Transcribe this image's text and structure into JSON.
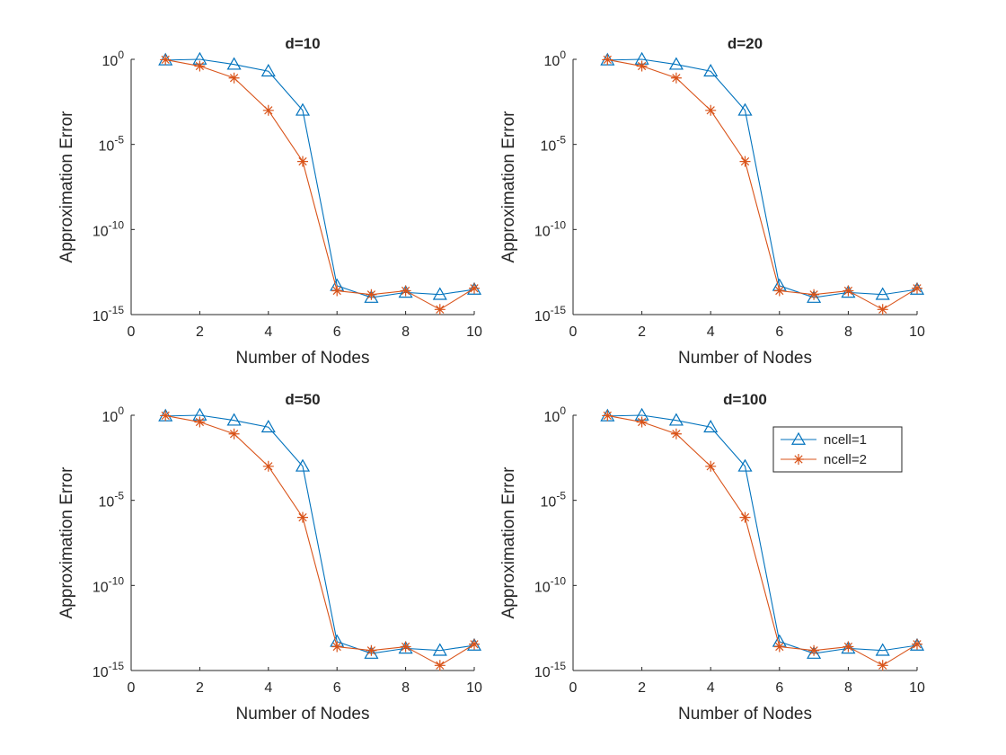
{
  "figure": {
    "xlabel": "Number of Nodes",
    "ylabel": "Approximation Error",
    "colors": {
      "ncell1": "#0072BD",
      "ncell2": "#D95319",
      "axis": "#262626"
    }
  },
  "chart_data": [
    {
      "type": "line",
      "title": "d=10",
      "xlabel": "Number of Nodes",
      "ylabel": "Approximation Error",
      "x": [
        1,
        2,
        3,
        4,
        5,
        6,
        7,
        8,
        9,
        10
      ],
      "xlim": [
        0,
        10
      ],
      "xticks": [
        "0",
        "2",
        "4",
        "6",
        "8",
        "10"
      ],
      "yscale": "log",
      "ylim": [
        1e-15,
        1
      ],
      "yticks": [
        {
          "base": "10",
          "exp": "0"
        },
        {
          "base": "10",
          "exp": "-5"
        },
        {
          "base": "10",
          "exp": "-10"
        },
        {
          "base": "10",
          "exp": "-15"
        }
      ],
      "series": [
        {
          "name": "ncell=1",
          "marker": "triangle",
          "values": [
            0.9,
            1.0,
            0.5,
            0.2,
            0.001,
            5e-14,
            1e-14,
            2e-14,
            1.5e-14,
            3e-14
          ]
        },
        {
          "name": "ncell=2",
          "marker": "asterisk",
          "values": [
            0.95,
            0.4,
            0.08,
            0.001,
            1e-06,
            2.5e-14,
            1.5e-14,
            2.5e-14,
            2e-15,
            3.5e-14
          ]
        }
      ]
    },
    {
      "type": "line",
      "title": "d=20",
      "xlabel": "Number of Nodes",
      "ylabel": "Approximation Error",
      "x": [
        1,
        2,
        3,
        4,
        5,
        6,
        7,
        8,
        9,
        10
      ],
      "xlim": [
        0,
        10
      ],
      "xticks": [
        "0",
        "2",
        "4",
        "6",
        "8",
        "10"
      ],
      "yscale": "log",
      "ylim": [
        1e-15,
        1
      ],
      "yticks": [
        {
          "base": "10",
          "exp": "0"
        },
        {
          "base": "10",
          "exp": "-5"
        },
        {
          "base": "10",
          "exp": "-10"
        },
        {
          "base": "10",
          "exp": "-15"
        }
      ],
      "series": [
        {
          "name": "ncell=1",
          "marker": "triangle",
          "values": [
            0.9,
            1.0,
            0.5,
            0.2,
            0.001,
            5e-14,
            1e-14,
            2e-14,
            1.5e-14,
            3e-14
          ]
        },
        {
          "name": "ncell=2",
          "marker": "asterisk",
          "values": [
            0.95,
            0.4,
            0.08,
            0.001,
            1e-06,
            2.5e-14,
            1.5e-14,
            2.5e-14,
            2e-15,
            3.5e-14
          ]
        }
      ]
    },
    {
      "type": "line",
      "title": "d=50",
      "xlabel": "Number of Nodes",
      "ylabel": "Approximation Error",
      "x": [
        1,
        2,
        3,
        4,
        5,
        6,
        7,
        8,
        9,
        10
      ],
      "xlim": [
        0,
        10
      ],
      "xticks": [
        "0",
        "2",
        "4",
        "6",
        "8",
        "10"
      ],
      "yscale": "log",
      "ylim": [
        1e-15,
        1
      ],
      "yticks": [
        {
          "base": "10",
          "exp": "0"
        },
        {
          "base": "10",
          "exp": "-5"
        },
        {
          "base": "10",
          "exp": "-10"
        },
        {
          "base": "10",
          "exp": "-15"
        }
      ],
      "series": [
        {
          "name": "ncell=1",
          "marker": "triangle",
          "values": [
            0.9,
            1.0,
            0.5,
            0.2,
            0.001,
            5e-14,
            1e-14,
            2e-14,
            1.5e-14,
            3e-14
          ]
        },
        {
          "name": "ncell=2",
          "marker": "asterisk",
          "values": [
            0.95,
            0.4,
            0.08,
            0.001,
            1e-06,
            2.5e-14,
            1.5e-14,
            2.5e-14,
            2e-15,
            3.5e-14
          ]
        }
      ]
    },
    {
      "type": "line",
      "title": "d=100",
      "xlabel": "Number of Nodes",
      "ylabel": "Approximation Error",
      "x": [
        1,
        2,
        3,
        4,
        5,
        6,
        7,
        8,
        9,
        10
      ],
      "xlim": [
        0,
        10
      ],
      "xticks": [
        "0",
        "2",
        "4",
        "6",
        "8",
        "10"
      ],
      "yscale": "log",
      "ylim": [
        1e-15,
        1
      ],
      "yticks": [
        {
          "base": "10",
          "exp": "0"
        },
        {
          "base": "10",
          "exp": "-5"
        },
        {
          "base": "10",
          "exp": "-10"
        },
        {
          "base": "10",
          "exp": "-15"
        }
      ],
      "legend": {
        "position": "top-right",
        "entries": [
          "ncell=1",
          "ncell=2"
        ]
      },
      "series": [
        {
          "name": "ncell=1",
          "marker": "triangle",
          "values": [
            0.9,
            1.0,
            0.5,
            0.2,
            0.001,
            5e-14,
            1e-14,
            2e-14,
            1.5e-14,
            3e-14
          ]
        },
        {
          "name": "ncell=2",
          "marker": "asterisk",
          "values": [
            0.95,
            0.4,
            0.08,
            0.001,
            1e-06,
            2.5e-14,
            1.5e-14,
            2.5e-14,
            2e-15,
            3.5e-14
          ]
        }
      ]
    }
  ]
}
